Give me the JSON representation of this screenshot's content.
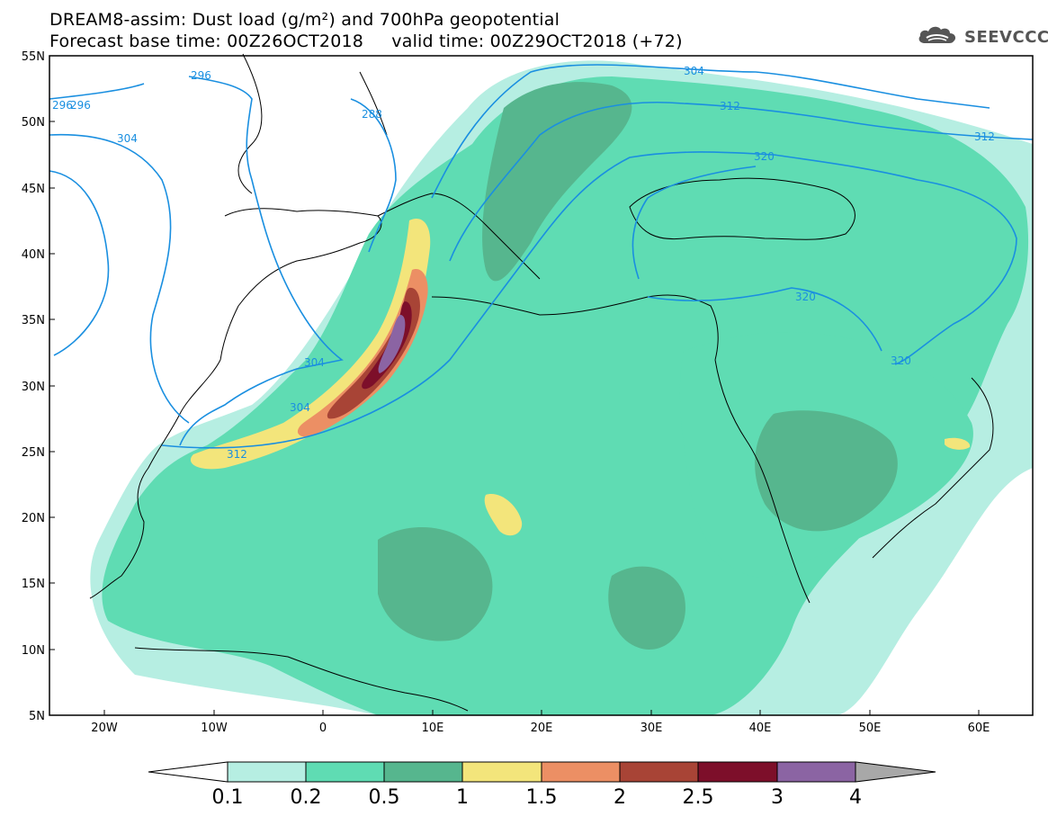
{
  "title": {
    "line1": "DREAM8-assim: Dust load (g/m²) and 700hPa geopotential",
    "line2": "Forecast base time: 00Z26OCT2018     valid time: 00Z29OCT2018 (+72)"
  },
  "logo": {
    "text": "SEEVCCC",
    "icon": "cloud-icon"
  },
  "axes": {
    "lat_labels": [
      "55N",
      "50N",
      "45N",
      "40N",
      "35N",
      "30N",
      "25N",
      "20N",
      "15N",
      "10N",
      "5N"
    ],
    "lon_labels": [
      "20W",
      "10W",
      "0",
      "10E",
      "20E",
      "30E",
      "40E",
      "50E",
      "60E"
    ]
  },
  "contours": {
    "labels": [
      "296",
      "296",
      "296",
      "288",
      "304",
      "304",
      "304",
      "304",
      "312",
      "312",
      "312",
      "320",
      "320",
      "320"
    ]
  },
  "colorbar": {
    "labels": [
      "0.1",
      "0.2",
      "0.5",
      "1",
      "1.5",
      "2",
      "2.5",
      "3",
      "4"
    ],
    "colors": [
      "#ffffff",
      "#b6eee2",
      "#5fdcb3",
      "#56b68e",
      "#f3e57b",
      "#ec8f64",
      "#a84436",
      "#7d0f2a",
      "#8b64a3",
      "#a8a8a8"
    ]
  },
  "colors": {
    "contour": "#1a8fe0",
    "very_light": "#b6eee2",
    "light": "#5fdcb3",
    "medium": "#56b68e"
  }
}
